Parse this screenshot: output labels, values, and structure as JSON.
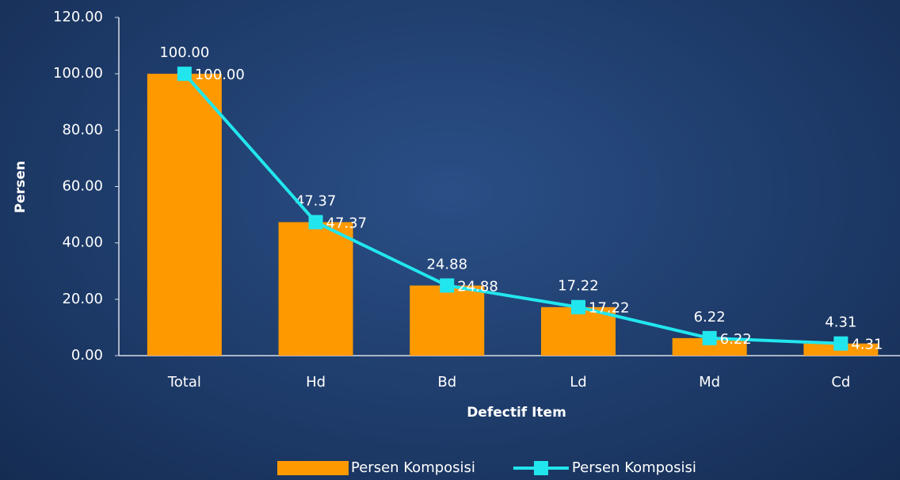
{
  "chart_data": {
    "type": "bar",
    "x_label": "Defectif Item",
    "y_label": "Persen",
    "categories": [
      "Total",
      "Hd",
      "Bd",
      "Ld",
      "Md",
      "Cd"
    ],
    "series": [
      {
        "name": "Persen Komposisi",
        "type": "bar",
        "color": "#ff9900",
        "values": [
          100,
          47.37,
          24.88,
          17.22,
          6.22,
          4.31
        ],
        "value_labels": [
          "100.00",
          "47.37",
          "24.88",
          "17.22",
          "6.22",
          "4.31"
        ]
      },
      {
        "name": "Persen Komposisi",
        "type": "line",
        "color": "#22e6ee",
        "values": [
          100,
          47.37,
          24.88,
          17.22,
          6.22,
          4.31
        ],
        "value_labels": [
          "100.00",
          "47.37",
          "24.88",
          "17.22",
          "6.22",
          "4.31"
        ]
      }
    ],
    "ylim": [
      0,
      120
    ],
    "yticks": [
      {
        "value": 0,
        "label": "0.00"
      },
      {
        "value": 20,
        "label": "20.00"
      },
      {
        "value": 40,
        "label": "40.00"
      },
      {
        "value": 60,
        "label": "60.00"
      },
      {
        "value": 80,
        "label": "80.00"
      },
      {
        "value": 100,
        "label": "100.00"
      },
      {
        "value": 120,
        "label": "120.00"
      }
    ],
    "grid": false,
    "legend": "bottom"
  }
}
